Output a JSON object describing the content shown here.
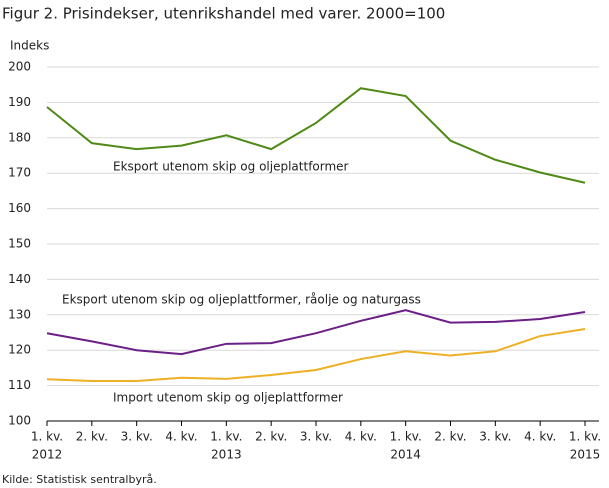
{
  "chart_data": {
    "type": "line",
    "title": "Figur 2. Prisindekser, utenrikshandel med varer. 2000=100",
    "y_label": "Indeks",
    "source": "Kilde: Statistisk sentralbyrå.",
    "categories": [
      "1. kv.",
      "2. kv.",
      "3. kv.",
      "4. kv.",
      "1. kv.",
      "2. kv.",
      "3. kv.",
      "4. kv.",
      "1. kv.",
      "2. kv.",
      "3. kv.",
      "4. kv.",
      "1. kv."
    ],
    "year_labels": [
      "2012",
      null,
      null,
      null,
      "2013",
      null,
      null,
      null,
      "2014",
      null,
      null,
      null,
      "2015"
    ],
    "series": [
      {
        "name": "Eksport utenom skip og oljeplattformer",
        "color": "#4f8a17",
        "values": [
          188.7,
          178.5,
          176.8,
          177.8,
          180.7,
          176.8,
          184.2,
          194,
          191.8,
          179.2,
          173.8,
          170.2,
          167.3
        ]
      },
      {
        "name": "Eksport utenom skip og oljeplattformer,  råolje  og naturgass",
        "color": "#6b1f87",
        "values": [
          124.8,
          122.5,
          120,
          118.9,
          121.8,
          122,
          124.8,
          128.3,
          131.3,
          127.8,
          128,
          128.8,
          130.8
        ]
      },
      {
        "name": "Import utenom skip og oljeplattformer",
        "color": "#edb025",
        "values": [
          111.8,
          111.3,
          111.3,
          112.2,
          111.9,
          113,
          114.4,
          117.5,
          119.7,
          118.5,
          119.7,
          124,
          126
        ]
      }
    ],
    "ylim": [
      100,
      200
    ],
    "yticks": [
      100,
      110,
      120,
      130,
      140,
      150,
      160,
      170,
      180,
      190,
      200
    ],
    "grid": true
  }
}
